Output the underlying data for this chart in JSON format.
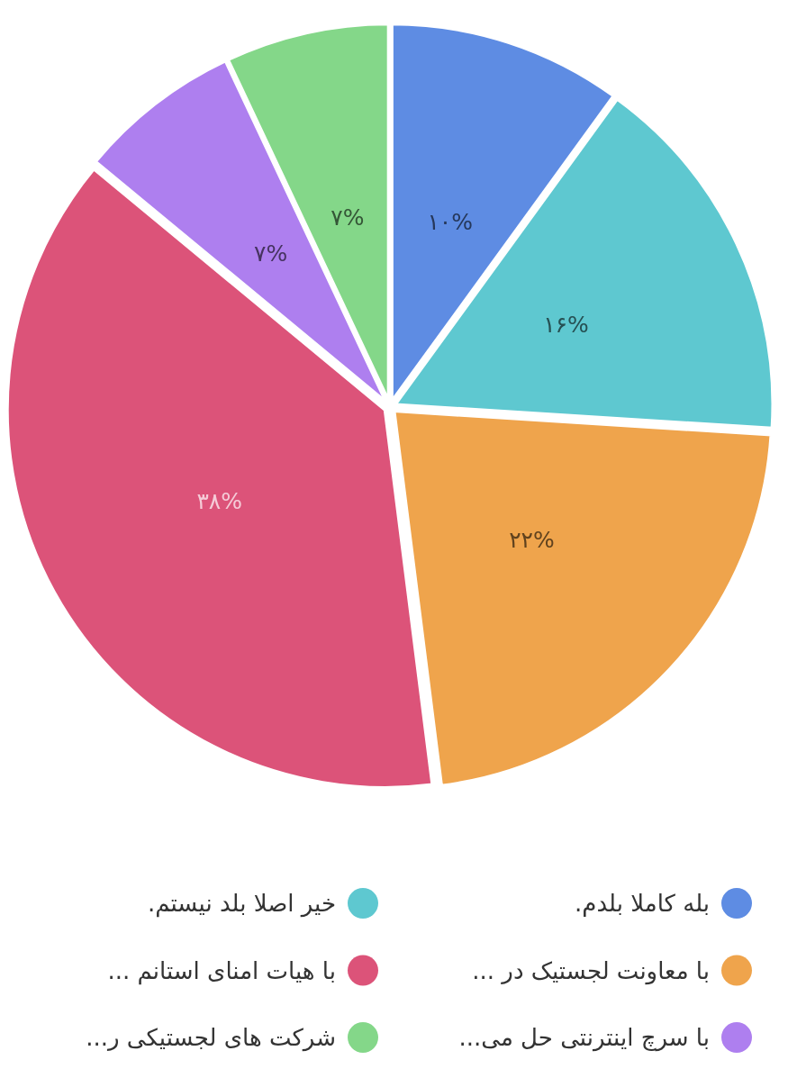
{
  "chart_data": {
    "type": "pie",
    "categories": [
      "بله کاملا بلدم.",
      "خیر اصلا بلد نیستم.",
      "با معاونت لجستیک در ...",
      "با هیات امنای استانم ...",
      "با سرچ اینترنتی حل می...",
      "شرکت های لجستیکی ر..."
    ],
    "values": [
      10,
      16,
      22,
      38,
      7,
      7
    ],
    "colors": [
      "#5e8ce3",
      "#5ec8d0",
      "#efa44c",
      "#dc5379",
      "#ae7fef",
      "#84d789"
    ],
    "value_labels": [
      "۱۰%",
      "۱۶%",
      "۲۲%",
      "۳۸%",
      "۷%",
      "۷%"
    ],
    "legend": "bottom"
  }
}
